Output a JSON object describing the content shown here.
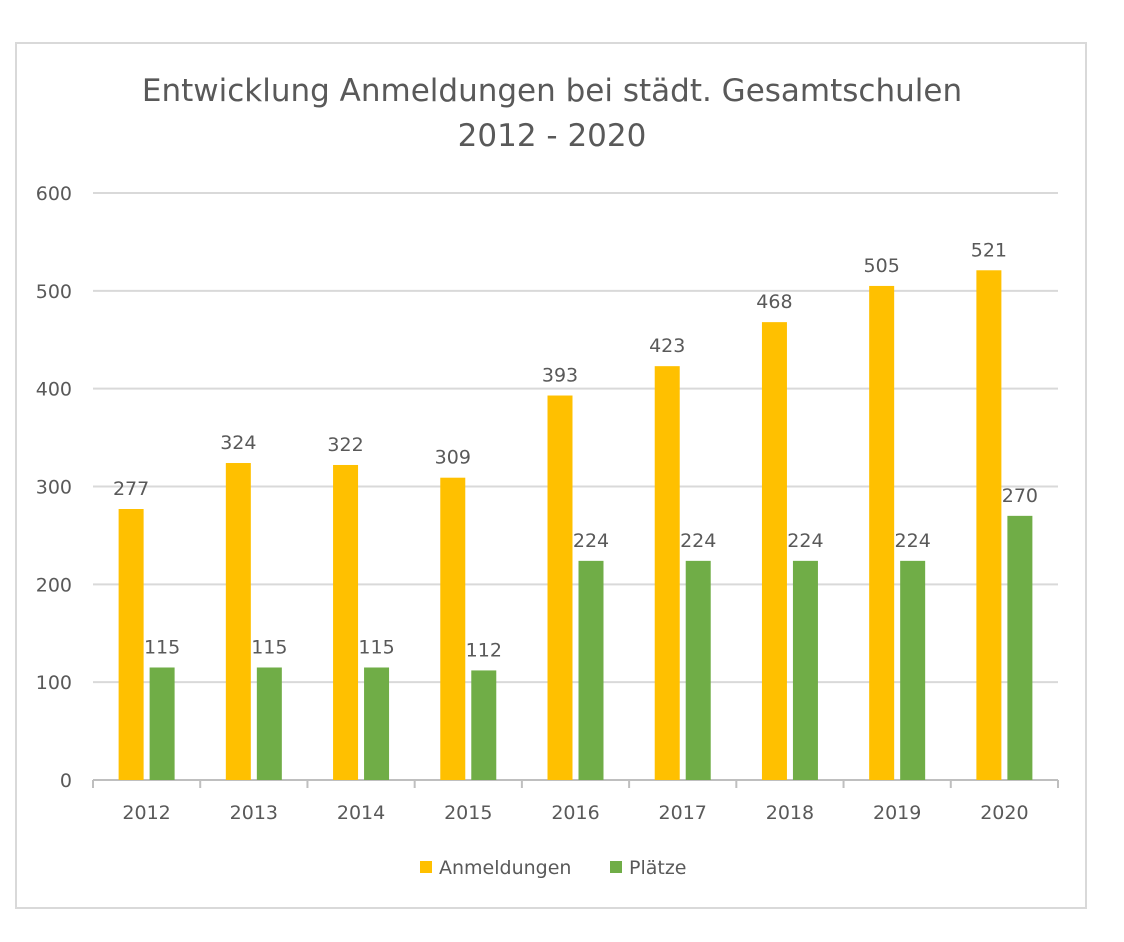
{
  "chart_data": {
    "type": "bar",
    "title": "Entwicklung Anmeldungen bei städt. Gesamtschulen",
    "subtitle": "2012 - 2020",
    "xlabel": "",
    "ylabel": "",
    "ylim": [
      0,
      600
    ],
    "yticks": [
      0,
      100,
      200,
      300,
      400,
      500,
      600
    ],
    "grid": true,
    "legend_position": "bottom",
    "categories": [
      "2012",
      "2013",
      "2014",
      "2015",
      "2016",
      "2017",
      "2018",
      "2019",
      "2020"
    ],
    "series": [
      {
        "name": "Anmeldungen",
        "color": "#FFC000",
        "values": [
          277,
          324,
          322,
          309,
          393,
          423,
          468,
          505,
          521
        ]
      },
      {
        "name": "Plätze",
        "color": "#70AD47",
        "values": [
          115,
          115,
          115,
          112,
          224,
          224,
          224,
          224,
          270
        ]
      }
    ]
  }
}
